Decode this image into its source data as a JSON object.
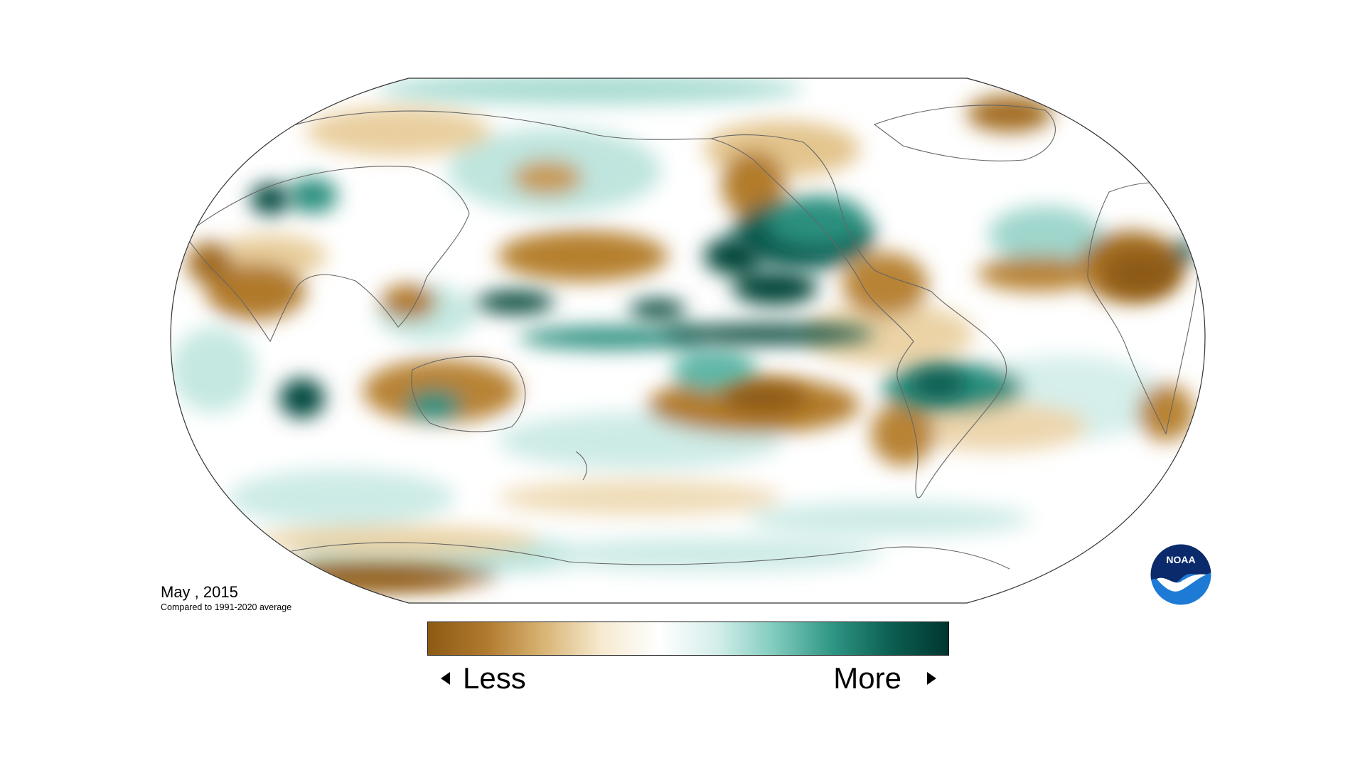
{
  "map": {
    "date_text": "May , 2015",
    "baseline_text": "Compared to 1991-2020 average",
    "projection": "robinson",
    "colors": {
      "dry_strong": "#8c5a14",
      "dry": "#c89a4e",
      "dry_light": "#f2e3c2",
      "neutral": "#ffffff",
      "wet_light": "#cdebe6",
      "wet": "#5fb8a8",
      "wet_strong": "#00473d",
      "coastline": "#555555"
    }
  },
  "legend": {
    "less_label": "Less",
    "more_label": "More",
    "gradient": [
      "#8c5a14",
      "#b07a2e",
      "#d9b474",
      "#f6ead0",
      "#ffffff",
      "#d4eeea",
      "#7fcbbd",
      "#2f9584",
      "#0c5f52",
      "#00362f"
    ]
  },
  "logo": {
    "text": "NOAA",
    "colors": {
      "top": "#0b2a6b",
      "bottom": "#1d7bd6",
      "bird": "#ffffff"
    }
  }
}
